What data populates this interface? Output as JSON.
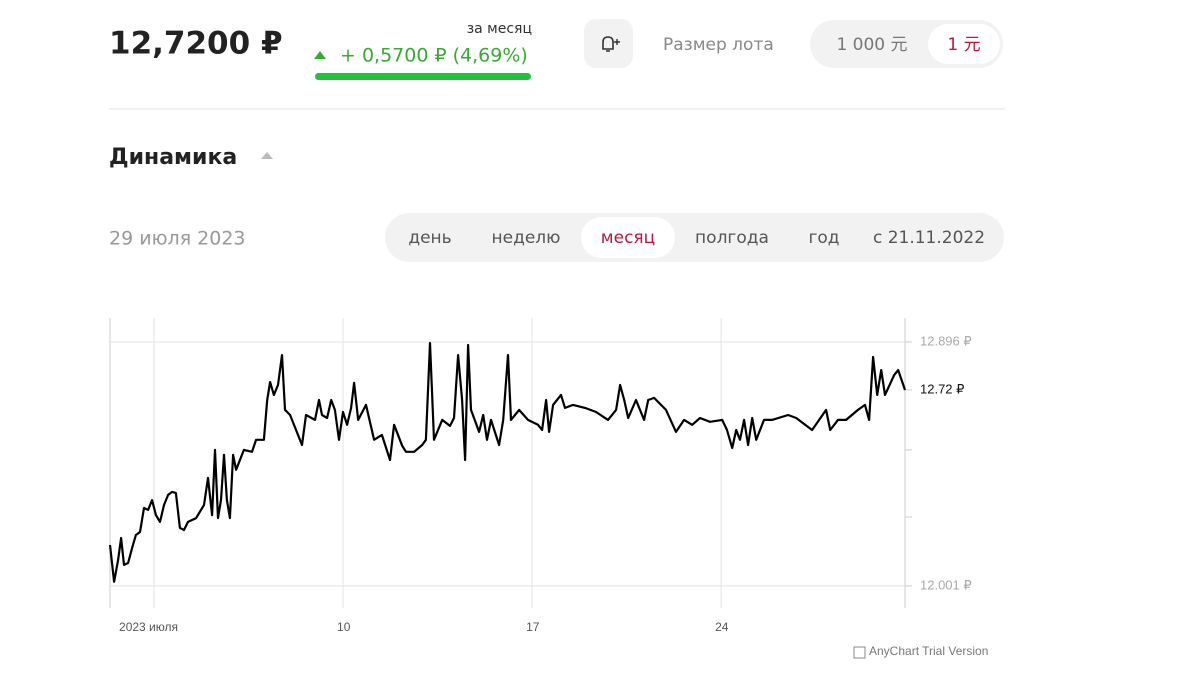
{
  "header": {
    "price": "12,7200 ₽",
    "change_period": "за месяц",
    "change": "+ 0,5700 ₽ (4,69%)",
    "lot_label": "Размер лота",
    "lot_options": [
      "1 000 元",
      "1 元"
    ],
    "lot_selected": 1
  },
  "section": {
    "title": "Динамика",
    "date": "29 июля 2023",
    "periods": [
      "день",
      "неделю",
      "месяц",
      "полгода",
      "год",
      "с 21.11.2022"
    ],
    "period_selected": 2
  },
  "chart_data": {
    "type": "line",
    "color": "#000000",
    "x": [
      1.37,
      1.52,
      1.67,
      1.78,
      1.89,
      2.04,
      2.19,
      2.33,
      2.48,
      2.63,
      2.78,
      2.93,
      3.07,
      3.22,
      3.37,
      3.52,
      3.67,
      3.81,
      3.96,
      4.11,
      4.26,
      4.56,
      4.85,
      5.0,
      5.15,
      5.26,
      5.37,
      5.48,
      5.59,
      5.7,
      5.81,
      5.93,
      6.04,
      6.33,
      6.63,
      6.78,
      7.07,
      7.19,
      7.3,
      7.44,
      7.59,
      7.74,
      7.85,
      8.04,
      8.48,
      8.63,
      8.96,
      9.11,
      9.22,
      9.41,
      9.56,
      9.7,
      9.85,
      10.0,
      10.15,
      10.3,
      10.41,
      10.56,
      10.85,
      11.15,
      11.44,
      11.74,
      11.89,
      12.19,
      12.33,
      12.63,
      12.93,
      13.07,
      13.22,
      13.37,
      13.67,
      13.96,
      14.11,
      14.26,
      14.41,
      14.52,
      14.63,
      14.74,
      15.04,
      15.19,
      15.33,
      15.48,
      15.78,
      15.93,
      16.11,
      16.22,
      16.52,
      16.85,
      17.22,
      17.37,
      17.52,
      17.63,
      17.78,
      18.07,
      18.22,
      18.52,
      18.96,
      19.37,
      19.81,
      20.11,
      20.26,
      20.41,
      20.56,
      20.85,
      21.15,
      21.3,
      21.52,
      21.96,
      22.33,
      22.63,
      22.93,
      23.22,
      23.59,
      24.04,
      24.22,
      24.41,
      24.56,
      24.7,
      24.85,
      25.0,
      25.15,
      25.3,
      25.59,
      25.89,
      26.48,
      26.78,
      27.37,
      27.89,
      28.04,
      28.33,
      28.63,
      29.07,
      29.33,
      29.48,
      29.63,
      29.78,
      29.93,
      30.07,
      30.41,
      30.56,
      30.81
    ],
    "values": [
      12.151,
      12.016,
      12.096,
      12.177,
      12.078,
      12.085,
      12.14,
      12.188,
      12.199,
      12.287,
      12.28,
      12.316,
      12.261,
      12.236,
      12.298,
      12.335,
      12.346,
      12.342,
      12.214,
      12.206,
      12.236,
      12.25,
      12.298,
      12.397,
      12.261,
      12.5,
      12.25,
      12.316,
      12.482,
      12.316,
      12.25,
      12.482,
      12.427,
      12.5,
      12.493,
      12.537,
      12.537,
      12.683,
      12.749,
      12.702,
      12.738,
      12.848,
      12.647,
      12.628,
      12.518,
      12.628,
      12.61,
      12.683,
      12.628,
      12.617,
      12.683,
      12.647,
      12.537,
      12.639,
      12.592,
      12.654,
      12.746,
      12.61,
      12.665,
      12.537,
      12.555,
      12.463,
      12.592,
      12.515,
      12.493,
      12.493,
      12.518,
      12.537,
      12.892,
      12.537,
      12.61,
      12.588,
      12.617,
      12.848,
      12.683,
      12.463,
      12.885,
      12.647,
      12.566,
      12.628,
      12.537,
      12.61,
      12.518,
      12.61,
      12.848,
      12.61,
      12.647,
      12.61,
      12.592,
      12.573,
      12.683,
      12.566,
      12.665,
      12.702,
      12.654,
      12.665,
      12.654,
      12.639,
      12.61,
      12.647,
      12.738,
      12.683,
      12.617,
      12.683,
      12.61,
      12.683,
      12.691,
      12.647,
      12.566,
      12.61,
      12.592,
      12.617,
      12.603,
      12.61,
      12.573,
      12.507,
      12.573,
      12.537,
      12.61,
      12.518,
      12.617,
      12.537,
      12.61,
      12.61,
      12.628,
      12.617,
      12.573,
      12.647,
      12.573,
      12.61,
      12.61,
      12.647,
      12.665,
      12.61,
      12.841,
      12.702,
      12.793,
      12.702,
      12.775,
      12.793,
      12.72
    ],
    "xlim": [
      1.37,
      30.81
    ],
    "xticks": [
      {
        "value": 3,
        "label": "2023 июля"
      },
      10,
      17,
      24
    ],
    "ylim": [
      11.92,
      12.984
    ],
    "yticks": [
      {
        "value": 12.001,
        "label": "12.001 ₽"
      },
      {
        "value": 12.896,
        "label": "12.896 ₽"
      }
    ],
    "yminor_ticks": [
      12.254,
      12.5
    ],
    "current_label": {
      "value": 12.72,
      "label": "12.72 ₽"
    },
    "grid": true,
    "watermark": "AnyChart Trial Version"
  }
}
